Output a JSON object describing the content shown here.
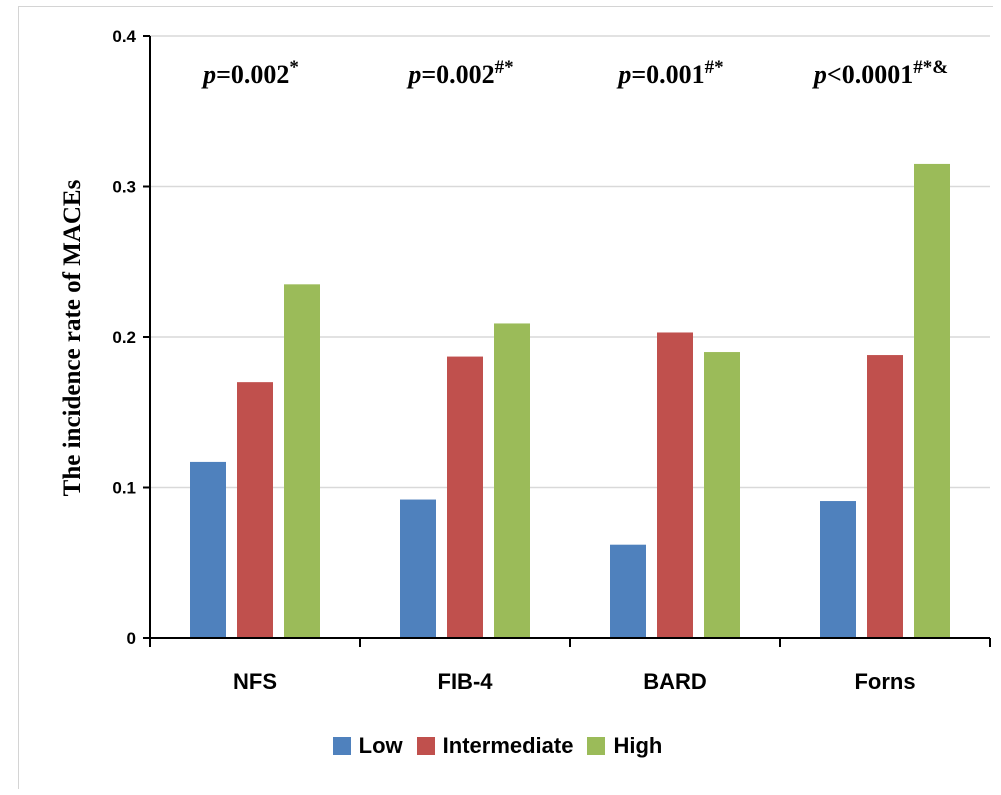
{
  "chart_data": {
    "type": "bar",
    "ylabel": "The incidence rate of  MACEs",
    "ylim": [
      0,
      0.4
    ],
    "yticks": [
      "0",
      "0.1",
      "0.2",
      "0.3",
      "0.4"
    ],
    "categories": [
      "NFS",
      "FIB-4",
      "BARD",
      "Forns"
    ],
    "series": [
      {
        "name": "Low",
        "color": "#4f81bd",
        "values": [
          0.117,
          0.092,
          0.062,
          0.091
        ]
      },
      {
        "name": "Intermediate",
        "color": "#c0504d",
        "values": [
          0.17,
          0.187,
          0.203,
          0.188
        ]
      },
      {
        "name": "High",
        "color": "#9bbb59",
        "values": [
          0.235,
          0.209,
          0.19,
          0.315
        ]
      }
    ],
    "annotations": [
      {
        "p": "p",
        "rest": "=0.002",
        "sup": "*"
      },
      {
        "p": "p",
        "rest": "=0.002",
        "sup": "#*"
      },
      {
        "p": "p",
        "rest": "=0.001",
        "sup": "#*"
      },
      {
        "p": "p",
        "rest": "<0.0001",
        "sup": "#*&"
      }
    ],
    "grid": true,
    "legend_position": "bottom"
  }
}
